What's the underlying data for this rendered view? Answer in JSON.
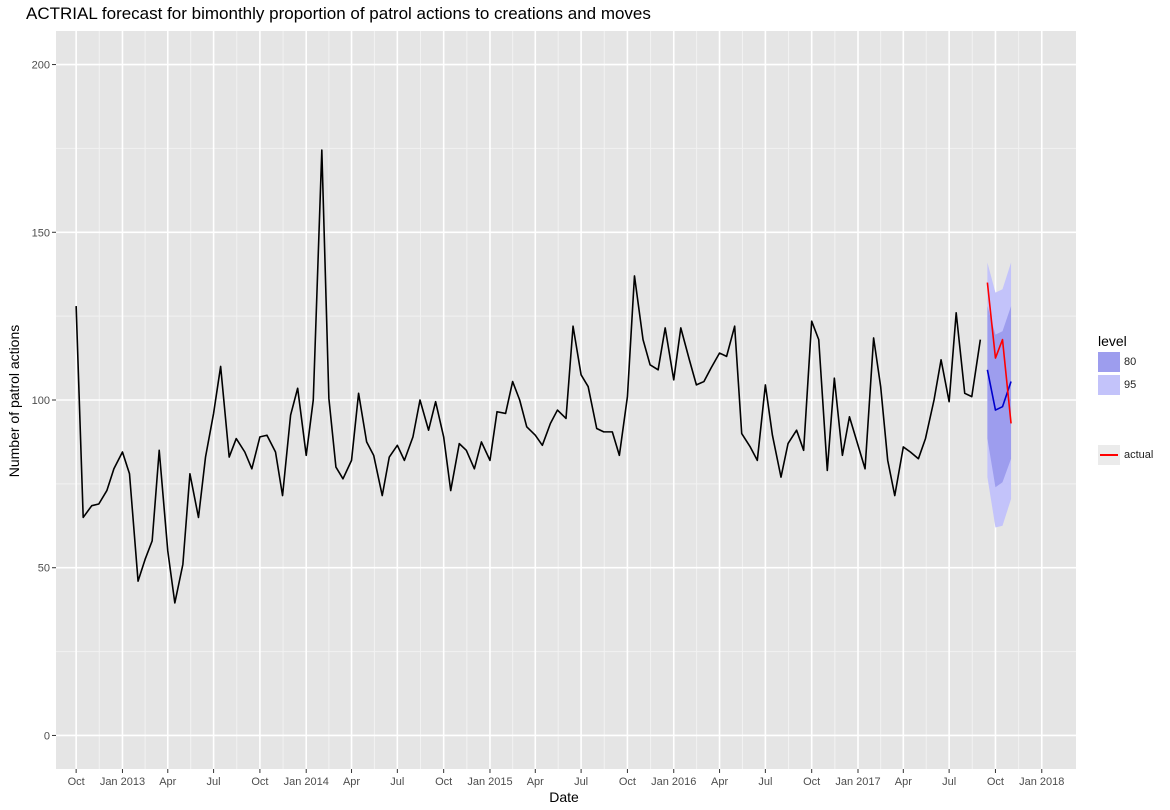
{
  "chart_data": {
    "type": "line",
    "title": "ACTRIAL forecast for bimonthly proportion of patrol actions to creations and moves",
    "xlabel": "Date",
    "ylabel": "Number of patrol actions",
    "ylim": [
      -10,
      210
    ],
    "yticks": [
      0,
      50,
      100,
      150,
      200
    ],
    "xlim": [
      "2012-08-22",
      "2018-03-10"
    ],
    "xticks": [
      {
        "date": "2012-10-01",
        "label": "Oct"
      },
      {
        "date": "2013-01-01",
        "label": "Jan 2013"
      },
      {
        "date": "2013-04-01",
        "label": "Apr"
      },
      {
        "date": "2013-07-01",
        "label": "Jul"
      },
      {
        "date": "2013-10-01",
        "label": "Oct"
      },
      {
        "date": "2014-01-01",
        "label": "Jan 2014"
      },
      {
        "date": "2014-04-01",
        "label": "Apr"
      },
      {
        "date": "2014-07-01",
        "label": "Jul"
      },
      {
        "date": "2014-10-01",
        "label": "Oct"
      },
      {
        "date": "2015-01-01",
        "label": "Jan 2015"
      },
      {
        "date": "2015-04-01",
        "label": "Apr"
      },
      {
        "date": "2015-07-01",
        "label": "Jul"
      },
      {
        "date": "2015-10-01",
        "label": "Oct"
      },
      {
        "date": "2016-01-01",
        "label": "Jan 2016"
      },
      {
        "date": "2016-04-01",
        "label": "Apr"
      },
      {
        "date": "2016-07-01",
        "label": "Jul"
      },
      {
        "date": "2016-10-01",
        "label": "Oct"
      },
      {
        "date": "2017-01-01",
        "label": "Jan 2017"
      },
      {
        "date": "2017-04-01",
        "label": "Apr"
      },
      {
        "date": "2017-07-01",
        "label": "Jul"
      },
      {
        "date": "2017-10-01",
        "label": "Oct"
      },
      {
        "date": "2018-01-01",
        "label": "Jan 2018"
      }
    ],
    "grid": true,
    "legend_position": "right",
    "legend": {
      "title": "level",
      "items": [
        {
          "label": "80",
          "color": "#9d9dee"
        },
        {
          "label": "95",
          "color": "#c3c3fa"
        }
      ],
      "actual_label": "actual"
    },
    "series": [
      {
        "role": "history",
        "color": "#000000",
        "x": [
          "2012-10-01",
          "2012-10-15",
          "2012-11-01",
          "2012-11-15",
          "2012-12-01",
          "2012-12-15",
          "2013-01-01",
          "2013-01-15",
          "2013-02-01",
          "2013-02-15",
          "2013-03-01",
          "2013-03-15",
          "2013-04-01",
          "2013-04-15",
          "2013-05-01",
          "2013-05-15",
          "2013-06-01",
          "2013-06-15",
          "2013-07-01",
          "2013-07-15",
          "2013-08-01",
          "2013-08-15",
          "2013-09-01",
          "2013-09-15",
          "2013-10-01",
          "2013-10-15",
          "2013-11-01",
          "2013-11-15",
          "2013-12-01",
          "2013-12-15",
          "2014-01-01",
          "2014-01-15",
          "2014-02-01",
          "2014-02-15",
          "2014-03-01",
          "2014-03-15",
          "2014-04-01",
          "2014-04-15",
          "2014-05-01",
          "2014-05-15",
          "2014-06-01",
          "2014-06-15",
          "2014-07-01",
          "2014-07-15",
          "2014-08-01",
          "2014-08-15",
          "2014-09-01",
          "2014-09-15",
          "2014-10-01",
          "2014-10-15",
          "2014-11-01",
          "2014-11-15",
          "2014-12-01",
          "2014-12-15",
          "2015-01-01",
          "2015-01-15",
          "2015-02-01",
          "2015-02-15",
          "2015-03-01",
          "2015-03-15",
          "2015-04-01",
          "2015-04-15",
          "2015-05-01",
          "2015-05-15",
          "2015-06-01",
          "2015-06-15",
          "2015-07-01",
          "2015-07-15",
          "2015-08-01",
          "2015-08-15",
          "2015-09-01",
          "2015-09-15",
          "2015-10-01",
          "2015-10-15",
          "2015-11-01",
          "2015-11-15",
          "2015-12-01",
          "2015-12-15",
          "2016-01-01",
          "2016-01-15",
          "2016-02-01",
          "2016-02-15",
          "2016-03-01",
          "2016-03-15",
          "2016-04-01",
          "2016-04-15",
          "2016-05-01",
          "2016-05-15",
          "2016-06-01",
          "2016-06-15",
          "2016-07-01",
          "2016-07-15",
          "2016-08-01",
          "2016-08-15",
          "2016-09-01",
          "2016-09-15",
          "2016-10-01",
          "2016-10-15",
          "2016-11-01",
          "2016-11-15",
          "2016-12-01",
          "2016-12-15",
          "2017-01-01",
          "2017-01-15",
          "2017-02-01",
          "2017-02-15",
          "2017-03-01",
          "2017-03-15",
          "2017-04-01",
          "2017-04-15",
          "2017-05-01",
          "2017-05-15",
          "2017-06-01",
          "2017-06-15",
          "2017-07-01",
          "2017-07-15",
          "2017-08-01",
          "2017-08-15",
          "2017-09-01"
        ],
        "values": [
          128,
          65,
          68.5,
          69,
          73,
          79.5,
          84.5,
          78,
          46,
          52.5,
          58,
          85,
          55,
          39.5,
          51,
          78,
          65,
          83,
          96,
          110,
          83,
          88.5,
          84.5,
          79.5,
          89,
          89.5,
          84.5,
          71.5,
          95.5,
          103.5,
          83.5,
          100,
          174.5,
          100.5,
          80,
          76.5,
          82,
          102,
          87.5,
          83.5,
          71.5,
          83,
          86.5,
          82,
          89,
          100,
          91,
          99.5,
          89,
          73,
          87,
          85,
          79.5,
          87.5,
          82,
          96.5,
          96,
          105.5,
          100,
          92,
          89.5,
          86.5,
          93,
          97,
          94.5,
          122,
          107.5,
          104,
          91.5,
          90.5,
          90.5,
          83.5,
          101,
          137,
          118,
          110.5,
          109,
          121.5,
          106,
          121.5,
          112,
          104.5,
          105.5,
          109.5,
          114,
          113,
          122,
          90,
          86,
          82,
          104.5,
          89.5,
          77,
          87,
          91,
          85,
          123.5,
          118,
          79,
          106.5,
          83.5,
          95,
          86.5,
          79.5,
          118.5,
          104,
          82,
          71.5,
          86,
          84.5,
          82.5,
          88.5,
          100,
          112,
          99.5,
          126,
          102,
          101,
          118
        ]
      },
      {
        "role": "forecast",
        "color": "#0000cc",
        "x": [
          "2017-09-15",
          "2017-10-01",
          "2017-10-15",
          "2017-11-01"
        ],
        "values": [
          109,
          97,
          98,
          105.5
        ],
        "lo80": [
          88.5,
          74,
          75.5,
          82.5
        ],
        "hi80": [
          128,
          119.5,
          120.5,
          128
        ],
        "lo95": [
          77,
          62,
          62.5,
          70.5
        ],
        "hi95": [
          141,
          132,
          133,
          141
        ]
      },
      {
        "name": "actual",
        "role": "actual",
        "color": "#ff0000",
        "x": [
          "2017-09-15",
          "2017-10-01",
          "2017-10-15",
          "2017-11-01"
        ],
        "values": [
          135,
          112.5,
          118,
          93
        ]
      }
    ]
  }
}
